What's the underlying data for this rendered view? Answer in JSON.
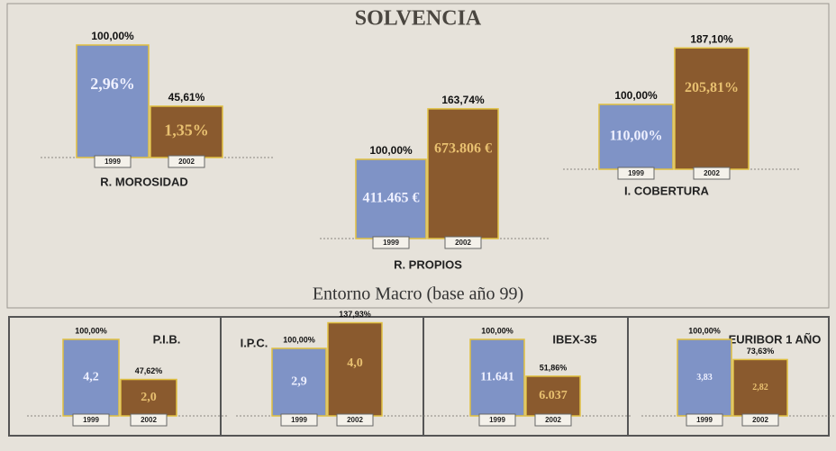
{
  "title": "SOLVENCIA",
  "subtitle": "Entorno Macro (base año 99)",
  "chart_data": [
    {
      "type": "bar",
      "title": "R. MOROSIDAD",
      "categories": [
        "1999",
        "2002"
      ],
      "values": [
        100,
        45.61
      ],
      "value_labels": [
        "100,00%",
        "45,61%"
      ],
      "bar_texts": [
        "2,96%",
        "1,35%"
      ],
      "colors": [
        "#7f93c6",
        "#8a5a2e"
      ]
    },
    {
      "type": "bar",
      "title": "R. PROPIOS",
      "categories": [
        "1999",
        "2002"
      ],
      "values": [
        100,
        163.74
      ],
      "value_labels": [
        "100,00%",
        "163,74%"
      ],
      "bar_texts": [
        "411.465 €",
        "673.806 €"
      ],
      "colors": [
        "#7f93c6",
        "#8a5a2e"
      ]
    },
    {
      "type": "bar",
      "title": "I. COBERTURA",
      "categories": [
        "1999",
        "2002"
      ],
      "values": [
        100,
        187.1
      ],
      "value_labels": [
        "100,00%",
        "187,10%"
      ],
      "bar_texts": [
        "110,00%",
        "205,81%"
      ],
      "colors": [
        "#7f93c6",
        "#8a5a2e"
      ]
    },
    {
      "type": "bar",
      "title": "P.I.B.",
      "categories": [
        "1999",
        "2002"
      ],
      "values": [
        100,
        47.62
      ],
      "value_labels": [
        "100,00%",
        "47,62%"
      ],
      "bar_texts": [
        "4,2",
        "2,0"
      ],
      "colors": [
        "#7f93c6",
        "#8a5a2e"
      ]
    },
    {
      "type": "bar",
      "title": "I.P.C.",
      "categories": [
        "1999",
        "2002"
      ],
      "values": [
        100,
        137.93
      ],
      "value_labels": [
        "100,00%",
        "137,93%"
      ],
      "bar_texts": [
        "2,9",
        "4,0"
      ],
      "colors": [
        "#7f93c6",
        "#8a5a2e"
      ]
    },
    {
      "type": "bar",
      "title": "IBEX-35",
      "categories": [
        "1999",
        "2002"
      ],
      "values": [
        100,
        51.86
      ],
      "value_labels": [
        "100,00%",
        "51,86%"
      ],
      "bar_texts": [
        "11.641",
        "6.037"
      ],
      "colors": [
        "#7f93c6",
        "#8a5a2e"
      ]
    },
    {
      "type": "bar",
      "title": "EURIBOR 1 AÑO",
      "categories": [
        "1999",
        "2002"
      ],
      "values": [
        100,
        73.63
      ],
      "value_labels": [
        "100,00%",
        "73,63%"
      ],
      "bar_texts": [
        "3,83",
        "2,82"
      ],
      "colors": [
        "#7f93c6",
        "#8a5a2e"
      ]
    }
  ]
}
